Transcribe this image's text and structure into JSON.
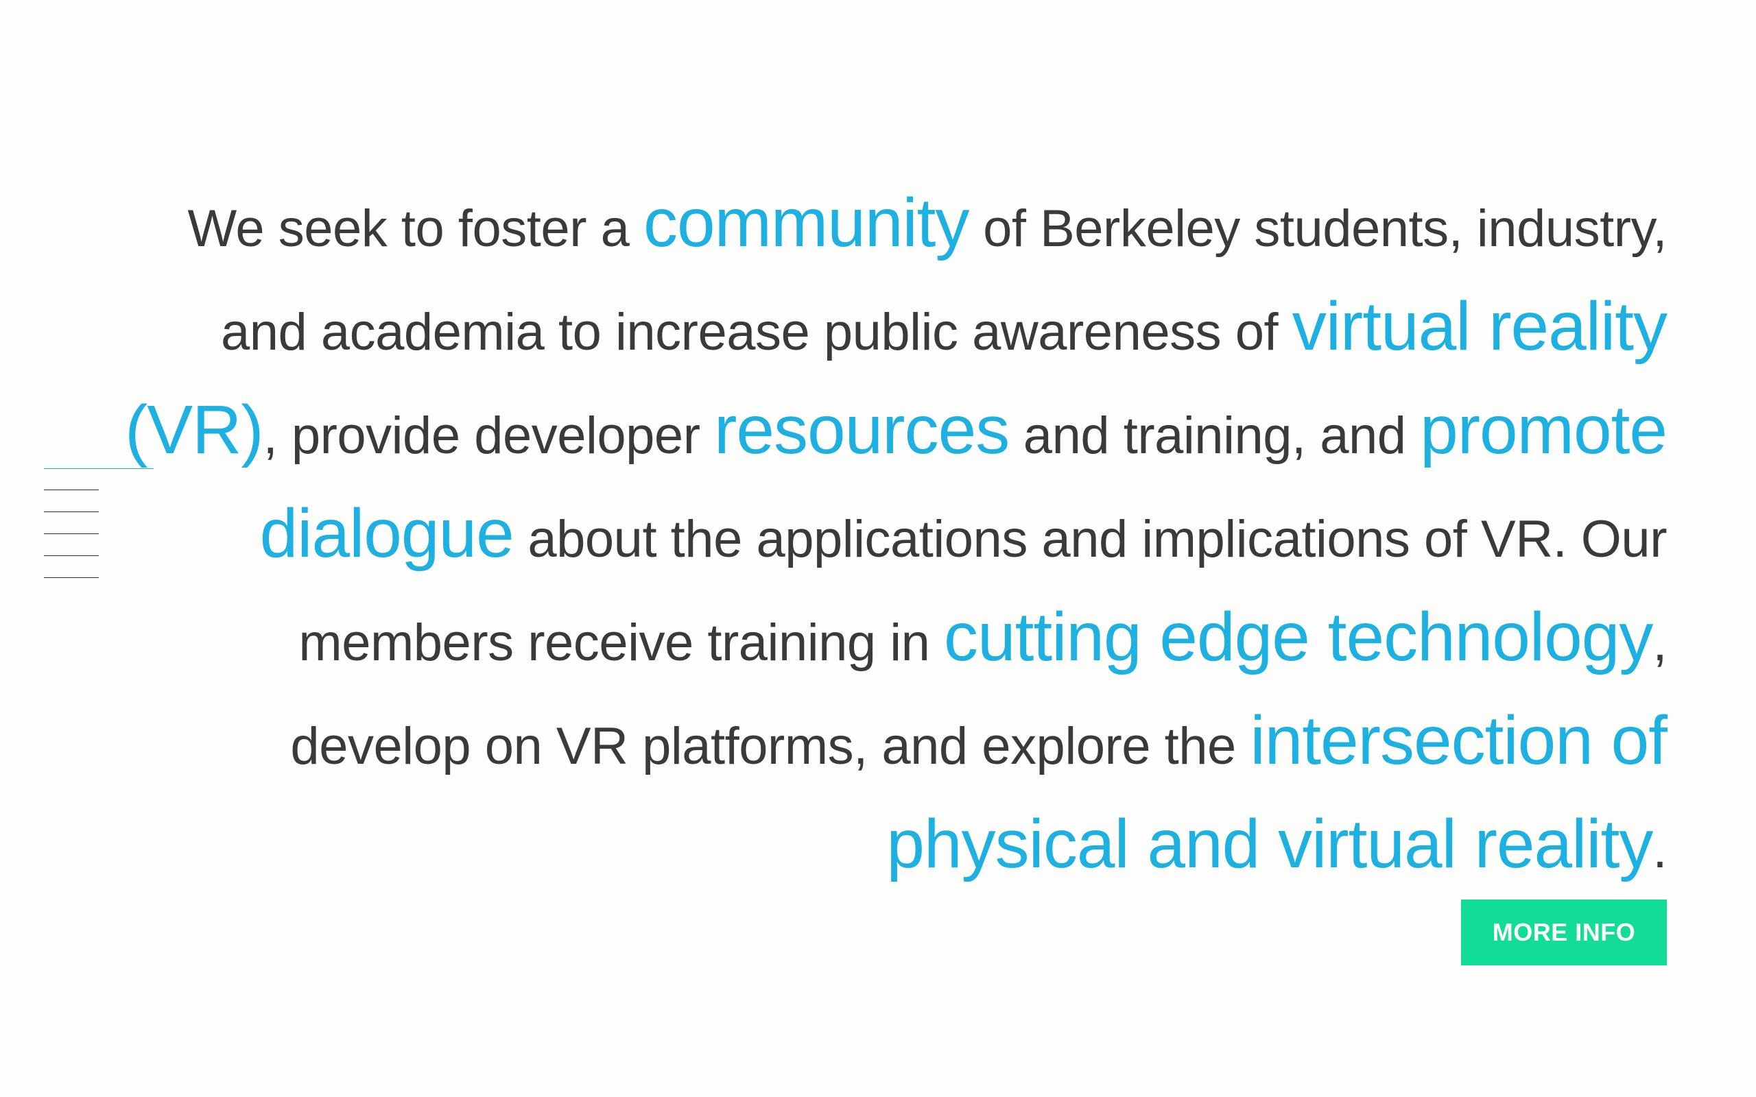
{
  "nav": {
    "items": [
      "",
      "",
      "",
      "",
      "",
      ""
    ],
    "active_index": 0
  },
  "mission": {
    "segments": [
      {
        "text": "We seek to foster a ",
        "highlight": false
      },
      {
        "text": "community",
        "highlight": true
      },
      {
        "text": " of Berkeley students, industry, and academia to increase public awareness of ",
        "highlight": false
      },
      {
        "text": "virtual reality (VR)",
        "highlight": true
      },
      {
        "text": ", provide developer ",
        "highlight": false
      },
      {
        "text": "resources",
        "highlight": true
      },
      {
        "text": " and training, and ",
        "highlight": false
      },
      {
        "text": "promote dialogue",
        "highlight": true
      },
      {
        "text": " about the applications and implications of VR. Our members receive training in ",
        "highlight": false
      },
      {
        "text": "cutting edge technology",
        "highlight": true
      },
      {
        "text": ", develop on VR platforms, and explore the ",
        "highlight": false
      },
      {
        "text": "intersection of physical and virtual reality",
        "highlight": true
      },
      {
        "text": ".",
        "highlight": false
      }
    ]
  },
  "cta": {
    "label": "MORE INFO"
  },
  "colors": {
    "background": "#fdfdfb",
    "text": "#3a3a3a",
    "accent": "#1fb0e2",
    "button": "#12dd96",
    "button_text": "#ffffff"
  }
}
